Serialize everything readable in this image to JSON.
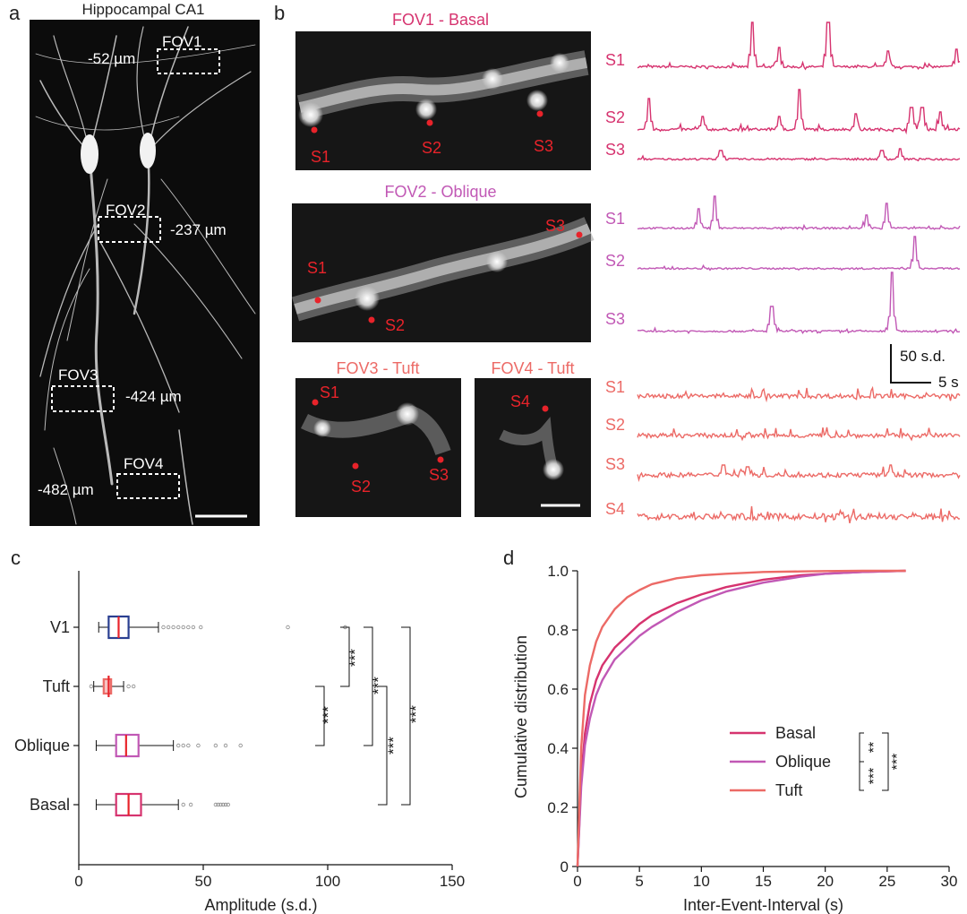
{
  "panel_letters": {
    "a": "a",
    "b": "b",
    "c": "c",
    "d": "d"
  },
  "panel_a": {
    "title": "Hippocampal CA1",
    "fovs": [
      {
        "label": "FOV1",
        "depth": "-52 µm"
      },
      {
        "label": "FOV2",
        "depth": "-237 µm"
      },
      {
        "label": "FOV3",
        "depth": "-424 µm"
      },
      {
        "label": "FOV4",
        "depth": "-482 µm"
      }
    ]
  },
  "panel_b": {
    "fov_titles": {
      "fov1": "FOV1 - Basal",
      "fov2": "FOV2 - Oblique",
      "fov3": "FOV3 - Tuft",
      "fov4": "FOV4 - Tuft"
    },
    "spine_labels": [
      "S1",
      "S2",
      "S3",
      "S4"
    ],
    "scale_bar_y": "50 s.d.",
    "scale_bar_x": "5 s",
    "colors": {
      "basal": "#d6336f",
      "oblique": "#c158b5",
      "tuft": "#ec6a66",
      "marker": "#e8232a"
    }
  },
  "chart_data": [
    {
      "type": "boxplot",
      "panel": "c",
      "xlabel": "Amplitude (s.d.)",
      "xlim": [
        0,
        150
      ],
      "xticks": [
        0,
        50,
        100,
        150
      ],
      "categories": [
        "V1",
        "Tuft",
        "Oblique",
        "Basal"
      ],
      "box_colors": [
        "#2a3f91",
        "#ec6a66",
        "#c158b5",
        "#d6336f"
      ],
      "median_color": "#e8232a",
      "boxes": [
        {
          "name": "V1",
          "whisker_low": 8,
          "q1": 12,
          "median": 16,
          "q3": 20,
          "whisker_high": 32,
          "outliers": [
            34,
            36,
            38,
            40,
            42,
            44,
            46,
            49,
            84,
            107
          ]
        },
        {
          "name": "Tuft",
          "whisker_low": 6,
          "q1": 10,
          "median": 12,
          "q3": 13,
          "whisker_high": 18,
          "outliers": [
            5,
            20,
            22
          ]
        },
        {
          "name": "Oblique",
          "whisker_low": 7,
          "q1": 15,
          "median": 19,
          "q3": 24,
          "whisker_high": 38,
          "outliers": [
            40,
            42,
            44,
            48,
            55,
            59,
            65
          ]
        },
        {
          "name": "Basal",
          "whisker_low": 7,
          "q1": 15,
          "median": 20,
          "q3": 25,
          "whisker_high": 40,
          "outliers": [
            42,
            45,
            55,
            56,
            57,
            58,
            59,
            60
          ]
        }
      ],
      "significance": [
        {
          "pair": [
            "V1",
            "Tuft"
          ],
          "label": "***"
        },
        {
          "pair": [
            "Tuft",
            "Oblique"
          ],
          "label": "***"
        },
        {
          "pair": [
            "V1",
            "Oblique"
          ],
          "label": "***"
        },
        {
          "pair": [
            "Tuft",
            "Basal"
          ],
          "label": "***"
        },
        {
          "pair": [
            "V1",
            "Basal"
          ],
          "label": "***"
        }
      ]
    },
    {
      "type": "line",
      "panel": "d",
      "xlabel": "Inter-Event-Interval (s)",
      "ylabel": "Cumulative distribution",
      "xlim": [
        0,
        30
      ],
      "ylim": [
        0,
        1.0
      ],
      "xticks": [
        0,
        5,
        10,
        15,
        20,
        25,
        30
      ],
      "yticks": [
        0,
        0.2,
        0.4,
        0.6,
        0.8,
        1.0
      ],
      "ytick_labels": [
        "0",
        "0.2",
        "0.4",
        "0.6",
        "0.8",
        "1.0"
      ],
      "series": [
        {
          "name": "Basal",
          "color": "#d6336f",
          "x": [
            0,
            0.3,
            0.6,
            1,
            1.5,
            2,
            3,
            4,
            5,
            6,
            8,
            10,
            12,
            15,
            18,
            20,
            23,
            26.5
          ],
          "y": [
            0,
            0.3,
            0.45,
            0.55,
            0.63,
            0.68,
            0.74,
            0.78,
            0.82,
            0.85,
            0.89,
            0.92,
            0.945,
            0.97,
            0.985,
            0.99,
            0.996,
            1.0
          ]
        },
        {
          "name": "Oblique",
          "color": "#c158b5",
          "x": [
            0,
            0.3,
            0.6,
            1,
            1.5,
            2,
            3,
            4,
            5,
            6,
            8,
            10,
            12,
            15,
            18,
            20,
            23,
            26.5
          ],
          "y": [
            0,
            0.27,
            0.41,
            0.5,
            0.58,
            0.63,
            0.7,
            0.74,
            0.78,
            0.81,
            0.86,
            0.9,
            0.93,
            0.96,
            0.98,
            0.99,
            0.996,
            1.0
          ]
        },
        {
          "name": "Tuft",
          "color": "#ec6a66",
          "x": [
            0,
            0.3,
            0.6,
            1,
            1.5,
            2,
            3,
            4,
            5,
            6,
            8,
            10,
            12,
            15,
            18,
            20,
            23,
            26.5
          ],
          "y": [
            0,
            0.4,
            0.58,
            0.68,
            0.76,
            0.81,
            0.87,
            0.91,
            0.935,
            0.955,
            0.975,
            0.985,
            0.99,
            0.996,
            0.998,
            0.999,
            1.0,
            1.0
          ]
        }
      ],
      "significance": [
        {
          "pair": [
            "Basal",
            "Oblique"
          ],
          "label": "**"
        },
        {
          "pair": [
            "Oblique",
            "Tuft"
          ],
          "label": "***"
        },
        {
          "pair": [
            "Basal",
            "Tuft"
          ],
          "label": "***"
        }
      ]
    }
  ]
}
